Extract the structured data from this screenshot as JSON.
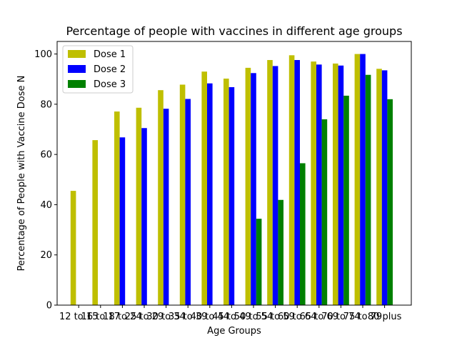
{
  "chart_data": {
    "type": "bar",
    "title": "Percentage of people with vaccines in different age groups",
    "xlabel": "Age Groups",
    "ylabel": "Percentage of People with Vaccine Dose N",
    "ylim": [
      0,
      105
    ],
    "yticks": [
      0,
      20,
      40,
      60,
      80,
      100
    ],
    "legend_position": "top-left",
    "categories": [
      "12 to 15",
      "16 to 17",
      "18 to 24",
      "25 to 29",
      "30 to 34",
      "35 to 39",
      "40 to 44",
      "45 to 49",
      "50 to 54",
      "55 to 59",
      "60 to 64",
      "65 to 69",
      "70 to 74",
      "75 to 79",
      "80 plus"
    ],
    "series": [
      {
        "name": "Dose 1",
        "color": "#bfbf00",
        "values": [
          45.5,
          65.7,
          77.1,
          78.6,
          85.6,
          87.8,
          93.0,
          90.2,
          94.5,
          97.6,
          99.5,
          97.0,
          96.2,
          100.0,
          94.1
        ]
      },
      {
        "name": "Dose 2",
        "color": "#0000ff",
        "values": [
          0,
          0,
          66.8,
          70.5,
          78.2,
          82.1,
          88.3,
          86.8,
          92.4,
          95.2,
          97.6,
          95.8,
          95.4,
          100.0,
          93.5
        ]
      },
      {
        "name": "Dose 3",
        "color": "#008000",
        "values": [
          0,
          0,
          0,
          0,
          0,
          0,
          0,
          0,
          34.4,
          41.9,
          56.5,
          74.0,
          83.4,
          91.7,
          82.0
        ]
      }
    ]
  }
}
